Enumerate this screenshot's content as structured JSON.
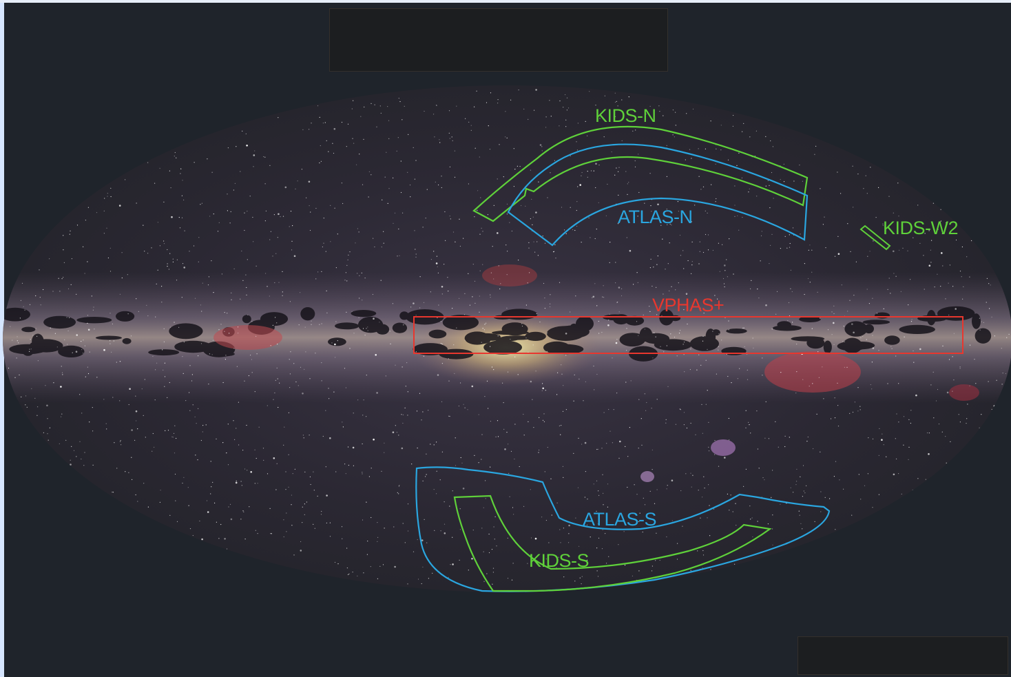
{
  "surveys": [
    {
      "id": "kids-n",
      "label": "KIDS-N",
      "color": "#5fd13a"
    },
    {
      "id": "atlas-n",
      "label": "ATLAS-N",
      "color": "#2aa6e0"
    },
    {
      "id": "kids-w2",
      "label": "KIDS-W2",
      "color": "#5fd13a"
    },
    {
      "id": "vphas",
      "label": "VPHAS+",
      "color": "#e8372e"
    },
    {
      "id": "atlas-s",
      "label": "ATLAS-S",
      "color": "#2aa6e0"
    },
    {
      "id": "kids-s",
      "label": "KIDS-S",
      "color": "#5fd13a"
    }
  ],
  "colors": {
    "background": "#1f242b",
    "sky": "#2b2935",
    "galactic_band": "#e8d8b0"
  }
}
